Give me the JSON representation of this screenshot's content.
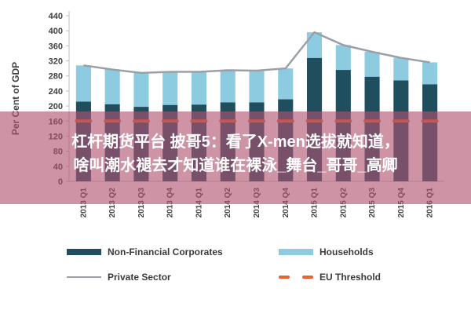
{
  "chart_data": {
    "type": "bar",
    "stacked": true,
    "categories": [
      "2013 Q1",
      "2013 Q2",
      "2013 Q3",
      "2013 Q4",
      "2014 Q1",
      "2014 Q2",
      "2014 Q3",
      "2014 Q4",
      "2015 Q1",
      "2015 Q2",
      "2015 Q3",
      "2015 Q4",
      "2016 Q1"
    ],
    "series": [
      {
        "name": "Non-Financial Corporates",
        "kind": "bar",
        "color": "#1f4e5f",
        "values": [
          212,
          205,
          198,
          203,
          204,
          210,
          210,
          218,
          328,
          296,
          278,
          268,
          258
        ]
      },
      {
        "name": "Households",
        "kind": "bar",
        "color": "#8ccbe0",
        "values": [
          96,
          92,
          90,
          88,
          87,
          85,
          84,
          82,
          68,
          66,
          66,
          60,
          58
        ]
      },
      {
        "name": "Private Sector",
        "kind": "line",
        "color": "#9aa0a6",
        "values": [
          308,
          297,
          288,
          291,
          291,
          295,
          294,
          300,
          396,
          362,
          344,
          328,
          316
        ]
      },
      {
        "name": "EU Threshold",
        "kind": "dash",
        "color": "#e8622a",
        "values": [
          160,
          160,
          160,
          160,
          160,
          160,
          160,
          160,
          160,
          160,
          160,
          160,
          160
        ]
      }
    ],
    "title": "",
    "xlabel": "",
    "ylabel": "Per Cent of GDP",
    "ylim": [
      0,
      440
    ],
    "yticks": [
      0,
      40,
      80,
      120,
      160,
      200,
      240,
      280,
      320,
      360,
      400,
      440
    ],
    "grid": false,
    "legend_position": "bottom"
  },
  "overlay": {
    "line1": "杠杆期货平台 披哥5：看了X-men选拔就知道，",
    "line2": "啥叫潮水褪去才知道谁在裸泳_舞台_哥哥_高卿"
  }
}
